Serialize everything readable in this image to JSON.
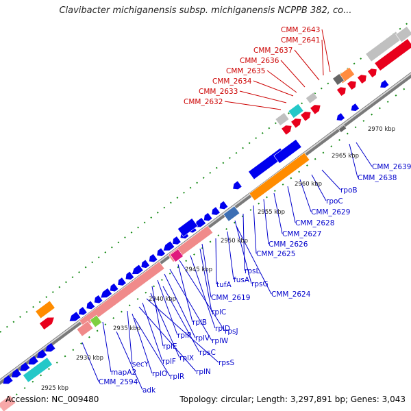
{
  "title": "Clavibacter michiganensis subsp. michiganensis NCPPB 382, co...",
  "footer": {
    "accession": "Accession: NC_009480",
    "summary": "Topology: circular; Length: 3,297,891 bp; Genes: 3,043"
  },
  "colors": {
    "forward_feature": "#e8001c",
    "reverse_feature": "#0000ee",
    "forward_label": "#cc0000",
    "reverse_label": "#0000cc",
    "backbone": "#7a7a7a",
    "tick": "#118811",
    "cog_pink": "#f08a8a",
    "cog_cyan": "#24c8c8",
    "cog_orange": "#ff8c00",
    "cog_gray": "#c0c0c0"
  },
  "scale_labels": [
    "2925 kbp",
    "2930 kbp",
    "2935 kbp",
    "2940 kbp",
    "2945 kbp",
    "2950 kbp",
    "2955 kbp",
    "2960 kbp",
    "2965 kbp",
    "2970 kbp"
  ],
  "forward_gene_labels": [
    "CMM_2643",
    "CMM_2641",
    "CMM_2637",
    "CMM_2636",
    "CMM_2635",
    "CMM_2634",
    "CMM_2633",
    "CMM_2632"
  ],
  "reverse_gene_labels": [
    "CMM_2639",
    "CMM_2638",
    "rpoB",
    "rpoC",
    "CMM_2629",
    "CMM_2628",
    "CMM_2627",
    "CMM_2626",
    "CMM_2625",
    "rpsL",
    "rpsG",
    "CMM_2624",
    "fusA",
    "tufA",
    "CMM_2619",
    "rplC",
    "rplD",
    "rpsJ",
    "rplB",
    "rplW",
    "rplV",
    "rplP",
    "rpsC",
    "rplE",
    "rplX",
    "rpsS",
    "rplF",
    "rplN",
    "secY",
    "rplO",
    "rplR",
    "mapA2",
    "CMM_2594",
    "adk"
  ]
}
